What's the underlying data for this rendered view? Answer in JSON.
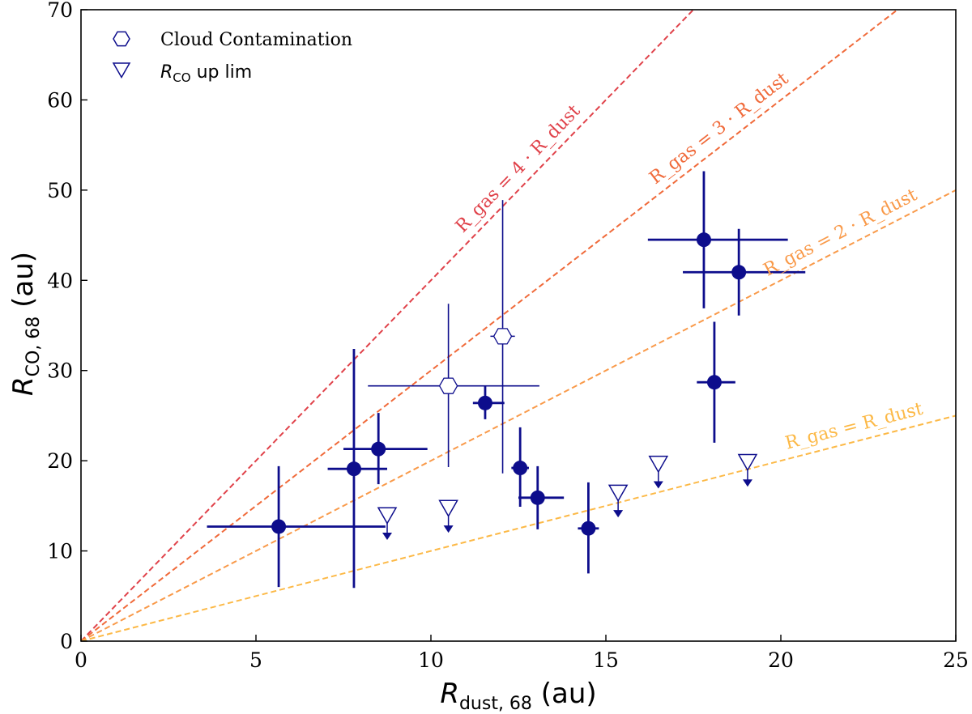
{
  "chart_data": {
    "type": "scatter",
    "xlabel": "R_dust,68 (au)",
    "ylabel": "R_CO,68 (au)",
    "xlim": [
      0,
      25
    ],
    "ylim": [
      0,
      70
    ],
    "xticks": [
      0,
      5,
      10,
      15,
      20,
      25
    ],
    "yticks": [
      0,
      10,
      20,
      30,
      40,
      50,
      60,
      70
    ],
    "grid": false,
    "legend_position": "top-left",
    "legend": [
      {
        "name": "Cloud Contamination",
        "marker": "open-hexagon"
      },
      {
        "name": "R_CO up lim",
        "marker": "open-triangle-down"
      }
    ],
    "series": [
      {
        "marker": "filled-circle",
        "color": "#0d0d8c",
        "points": [
          {
            "x": 5.65,
            "y": 12.7,
            "xerr": [
              2.05,
              3.05
            ],
            "yerr": [
              6.7,
              6.7
            ]
          },
          {
            "x": 7.8,
            "y": 19.1,
            "xerr": [
              0.75,
              0.95
            ],
            "yerr": [
              13.2,
              13.3
            ]
          },
          {
            "x": 8.5,
            "y": 21.3,
            "xerr": [
              1.0,
              1.4
            ],
            "yerr": [
              3.9,
              4.0
            ]
          },
          {
            "x": 11.55,
            "y": 26.4,
            "xerr": [
              0.35,
              0.55
            ],
            "yerr": [
              1.8,
              1.9
            ]
          },
          {
            "x": 12.55,
            "y": 19.2,
            "xerr": [
              0.25,
              0.25
            ],
            "yerr": [
              4.3,
              4.5
            ]
          },
          {
            "x": 13.05,
            "y": 15.9,
            "xerr": [
              0.55,
              0.75
            ],
            "yerr": [
              3.5,
              3.5
            ]
          },
          {
            "x": 14.5,
            "y": 12.5,
            "xerr": [
              0.3,
              0.3
            ],
            "yerr": [
              5.0,
              5.1
            ]
          },
          {
            "x": 17.8,
            "y": 44.5,
            "xerr": [
              1.6,
              2.4
            ],
            "yerr": [
              7.6,
              7.6
            ]
          },
          {
            "x": 18.1,
            "y": 28.7,
            "xerr": [
              0.5,
              0.6
            ],
            "yerr": [
              6.7,
              6.7
            ]
          },
          {
            "x": 18.8,
            "y": 40.9,
            "xerr": [
              1.6,
              1.9
            ],
            "yerr": [
              4.8,
              4.8
            ]
          }
        ]
      },
      {
        "name": "Cloud Contamination",
        "marker": "open-hexagon",
        "color": "#0d0d8c",
        "points": [
          {
            "x": 10.5,
            "y": 28.3,
            "xerr": [
              2.3,
              2.6
            ],
            "yerr": [
              9.0,
              9.1
            ]
          },
          {
            "x": 12.05,
            "y": 33.8,
            "xerr": [
              0.35,
              0.35
            ],
            "yerr": [
              15.2,
              15.1
            ]
          }
        ]
      },
      {
        "name": "R_CO up lim",
        "marker": "open-triangle-down",
        "color": "#0d0d8c",
        "upper_limit": true,
        "points": [
          {
            "x": 8.75,
            "y": 14.0
          },
          {
            "x": 10.5,
            "y": 14.8
          },
          {
            "x": 15.35,
            "y": 16.5
          },
          {
            "x": 16.5,
            "y": 19.7
          },
          {
            "x": 19.05,
            "y": 19.9
          }
        ]
      }
    ],
    "reference_lines": [
      {
        "slope": 4,
        "color": "#e0424a",
        "label": "R_gas = 4 · R_dust"
      },
      {
        "slope": 3,
        "color": "#f06a3a",
        "label": "R_gas = 3 · R_dust"
      },
      {
        "slope": 2,
        "color": "#f99a4a",
        "label": "R_gas = 2 · R_dust"
      },
      {
        "slope": 1,
        "color": "#fcb947",
        "label": "R_gas = R_dust"
      }
    ]
  }
}
